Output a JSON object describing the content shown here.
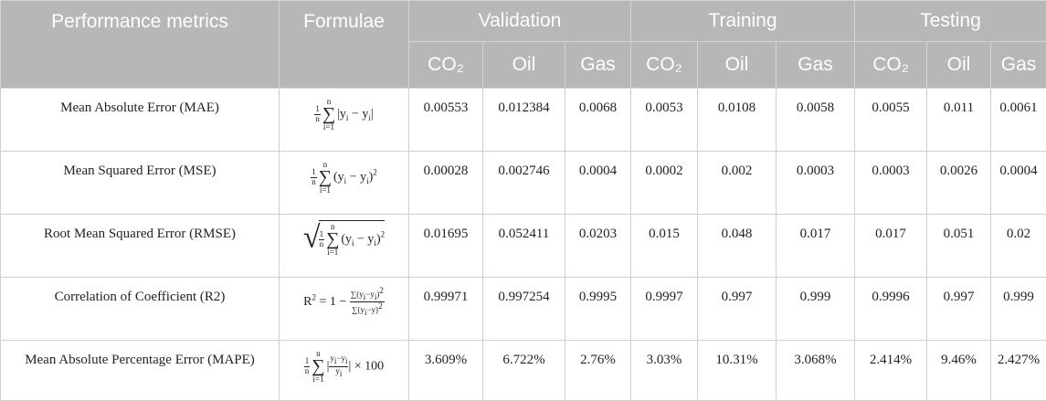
{
  "headers": {
    "metric": "Performance metrics",
    "formula": "Formulae",
    "groups": [
      "Validation",
      "Training",
      "Testing"
    ],
    "subcols": [
      "CO₂",
      "Oil",
      "Gas"
    ]
  },
  "rows": [
    {
      "metric": "Mean Absolute Error (MAE)",
      "values": [
        "0.00553",
        "0.012384",
        "0.0068",
        "0.0053",
        "0.0108",
        "0.0058",
        "0.0055",
        "0.011",
        "0.0061"
      ]
    },
    {
      "metric": "Mean Squared Error (MSE)",
      "values": [
        "0.00028",
        "0.002746",
        "0.0004",
        "0.0002",
        "0.002",
        "0.0003",
        "0.0003",
        "0.0026",
        "0.0004"
      ]
    },
    {
      "metric": "Root Mean Squared Error (RMSE)",
      "values": [
        "0.01695",
        "0.052411",
        "0.0203",
        "0.015",
        "0.048",
        "0.017",
        "0.017",
        "0.051",
        "0.02"
      ]
    },
    {
      "metric": "Correlation of Coefficient (R2)",
      "values": [
        "0.99971",
        "0.997254",
        "0.9995",
        "0.9997",
        "0.997",
        "0.999",
        "0.9996",
        "0.997",
        "0.999"
      ]
    },
    {
      "metric": "Mean Absolute Percentage Error (MAPE)",
      "values": [
        "3.609%",
        "6.722%",
        "2.76%",
        "3.03%",
        "10.31%",
        "3.068%",
        "2.414%",
        "9.46%",
        "2.427%"
      ]
    }
  ],
  "formula_text": {
    "one": "1",
    "n": "n",
    "i1": "i=1",
    "mae_body": "|y",
    "mse_body": "(y",
    "minus": " − y",
    "i": "i",
    "abs_close": "|",
    "sq_close": ")",
    "two": "2",
    "r2_lhs": "R",
    "r2_eq": " = 1 − ",
    "r2_num": "∑(y",
    "r2_num_mid": "−y",
    "r2_num_end": ")",
    "r2_den": "∑(y",
    "r2_den_mid": "−y)",
    "mape_num": "y",
    "mape_num_mid": "−y",
    "times100": "| × 100"
  }
}
